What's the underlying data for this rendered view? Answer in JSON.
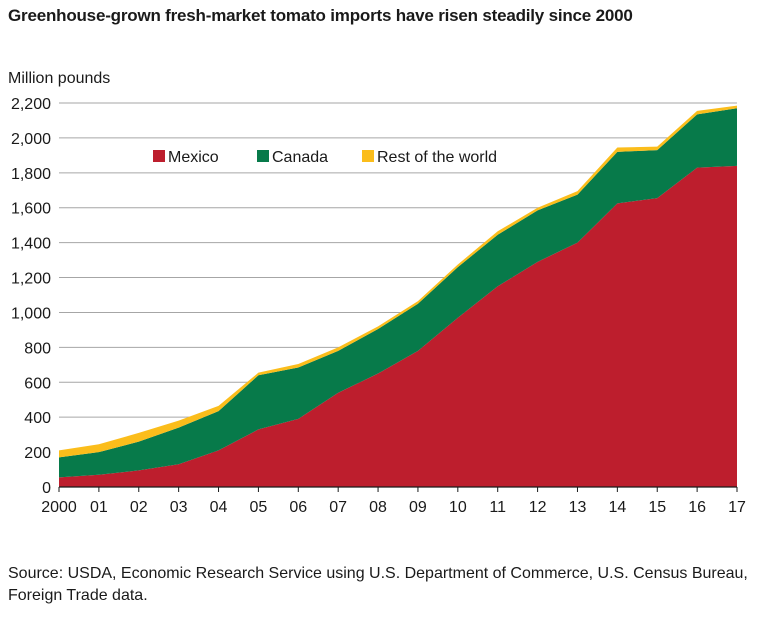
{
  "title": "Greenhouse-grown fresh-market tomato imports have risen steadily since 2000",
  "source": "Source: USDA, Economic Research Service using U.S. Department of Commerce, U.S. Census Bureau, Foreign Trade data.",
  "colors": {
    "mexico": "#bd1e2d",
    "canada": "#077a4a",
    "rest": "#fbbd1b",
    "grid": "#a6a6a6"
  },
  "chart_data": {
    "type": "area",
    "stacked": true,
    "ylabel": "Million pounds",
    "xlabel": "",
    "ylim": [
      0,
      2200
    ],
    "yticks": [
      0,
      200,
      400,
      600,
      800,
      1000,
      1200,
      1400,
      1600,
      1800,
      2000,
      2200
    ],
    "ytick_labels": [
      "0",
      "200",
      "400",
      "600",
      "800",
      "1,000",
      "1,200",
      "1,400",
      "1,600",
      "1,800",
      "2,000",
      "2,200"
    ],
    "x": [
      2000,
      2001,
      2002,
      2003,
      2004,
      2005,
      2006,
      2007,
      2008,
      2009,
      2010,
      2011,
      2012,
      2013,
      2014,
      2015,
      2016,
      2017
    ],
    "xtick_labels": [
      "2000",
      "01",
      "02",
      "03",
      "04",
      "05",
      "06",
      "07",
      "08",
      "09",
      "10",
      "11",
      "12",
      "13",
      "14",
      "15",
      "16",
      "17"
    ],
    "grid": "horizontal",
    "legend_position": "top-left",
    "series": [
      {
        "name": "Mexico",
        "color": "#bd1e2d",
        "values": [
          55,
          70,
          95,
          130,
          210,
          330,
          390,
          540,
          650,
          780,
          970,
          1150,
          1290,
          1400,
          1625,
          1655,
          1830,
          1840
        ]
      },
      {
        "name": "Canada",
        "color": "#077a4a",
        "values": [
          115,
          130,
          165,
          210,
          225,
          310,
          295,
          240,
          255,
          270,
          290,
          295,
          295,
          275,
          295,
          275,
          305,
          330
        ]
      },
      {
        "name": "Rest of the world",
        "color": "#fbbd1b",
        "values": [
          40,
          45,
          50,
          40,
          30,
          15,
          20,
          20,
          15,
          15,
          15,
          20,
          15,
          20,
          25,
          20,
          20,
          15
        ]
      }
    ]
  }
}
